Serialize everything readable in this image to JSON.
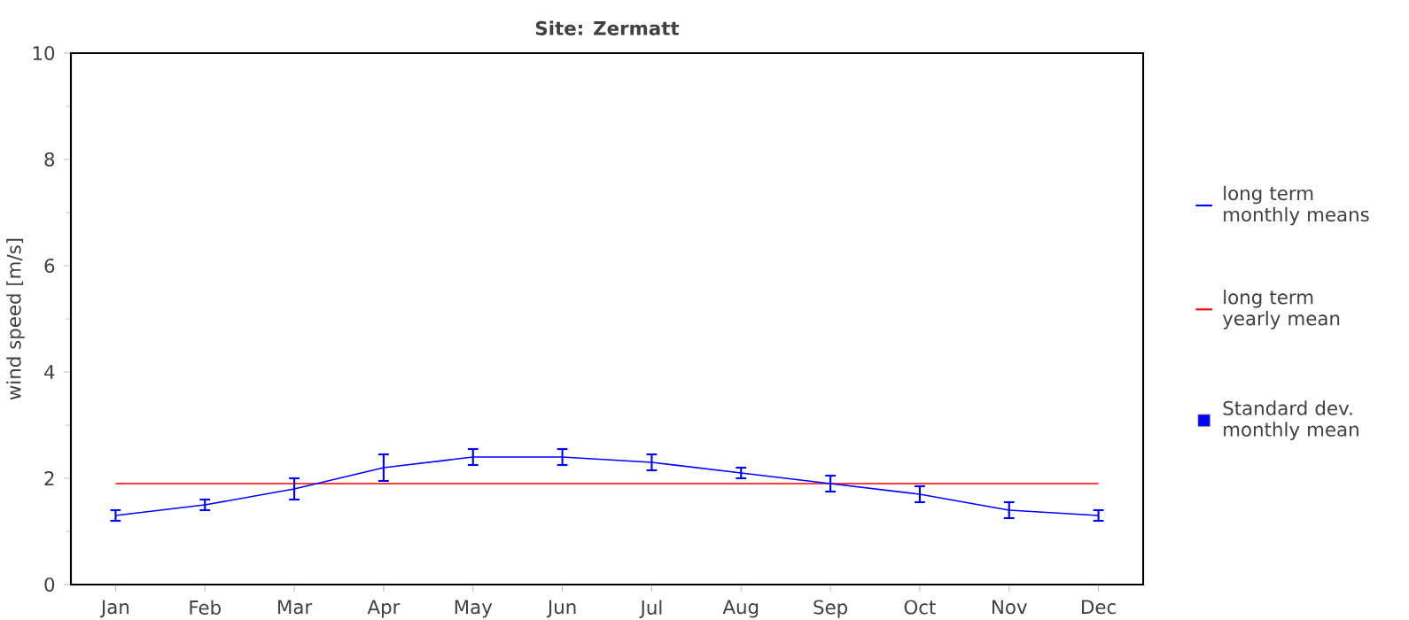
{
  "chart_data": {
    "type": "line",
    "title": "Site: Zermatt",
    "ylabel": "wind speed [m/s]",
    "categories": [
      "Jan",
      "Feb",
      "Mar",
      "Apr",
      "May",
      "Jun",
      "Jul",
      "Aug",
      "Sep",
      "Oct",
      "Nov",
      "Dec"
    ],
    "series": [
      {
        "name": "long term monthly means",
        "color": "#0000ff",
        "values": [
          1.3,
          1.5,
          1.8,
          2.2,
          2.4,
          2.4,
          2.3,
          2.1,
          1.9,
          1.7,
          1.4,
          1.3
        ],
        "errors": [
          0.1,
          0.1,
          0.2,
          0.25,
          0.15,
          0.15,
          0.15,
          0.1,
          0.15,
          0.15,
          0.15,
          0.1
        ]
      }
    ],
    "ref_lines": [
      {
        "axis": "y",
        "value": 1.9,
        "label": "long term yearly mean",
        "color": "#ff0000"
      }
    ],
    "annotations": [
      "Standard dev. monthly mean"
    ],
    "ylim": [
      0,
      10
    ],
    "yticks": [
      0,
      2,
      4,
      6,
      8,
      10
    ],
    "grid": false,
    "legend": "right",
    "marker": "none",
    "line_style": "solid"
  }
}
